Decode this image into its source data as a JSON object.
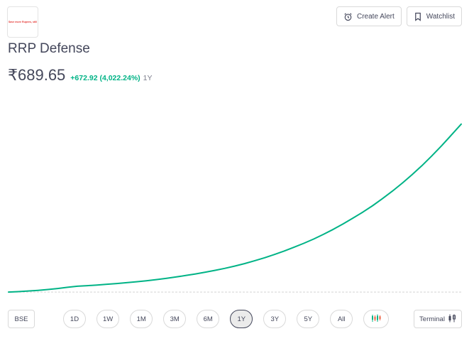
{
  "logo": {
    "text": "Save more Rupees, still"
  },
  "header": {
    "create_alert_label": "Create Alert",
    "watchlist_label": "Watchlist"
  },
  "stock": {
    "name": "RRP Defense",
    "price": "₹689.65",
    "change": "+672.92 (4,022.24%)",
    "period": "1Y"
  },
  "colors": {
    "line": "#00b386",
    "baseline": "#d4d4d4",
    "active_range": "#ebebeb"
  },
  "chart_data": {
    "type": "line",
    "x_range": "1Y",
    "baseline_value": 16.73,
    "values": [
      16.73,
      18.5,
      21.0,
      23.5,
      27.0,
      31.0,
      36.0,
      40.0,
      42.5,
      45.0,
      48.0,
      51.0,
      54.5,
      58.0,
      62.0,
      66.5,
      71.5,
      77.0,
      83.0,
      89.5,
      96.5,
      104.0,
      112.0,
      121.0,
      131.0,
      142.0,
      154.0,
      167.0,
      181.0,
      196.0,
      212.0,
      229.0,
      248.0,
      268.0,
      290.0,
      313.0,
      337.0,
      363.0,
      391.0,
      421.0,
      453.0,
      487.0,
      523.0,
      562.0,
      603.0,
      646.0,
      689.65
    ],
    "ylim": [
      0,
      760
    ],
    "grid": false
  },
  "footer": {
    "exchange": "BSE",
    "ranges": [
      "1D",
      "1W",
      "1M",
      "3M",
      "6M",
      "1Y",
      "3Y",
      "5Y",
      "All"
    ],
    "active_range": "1Y",
    "terminal_label": "Terminal",
    "candle_icon": "candlestick-icon",
    "terminal_icon": "candles-icon"
  }
}
